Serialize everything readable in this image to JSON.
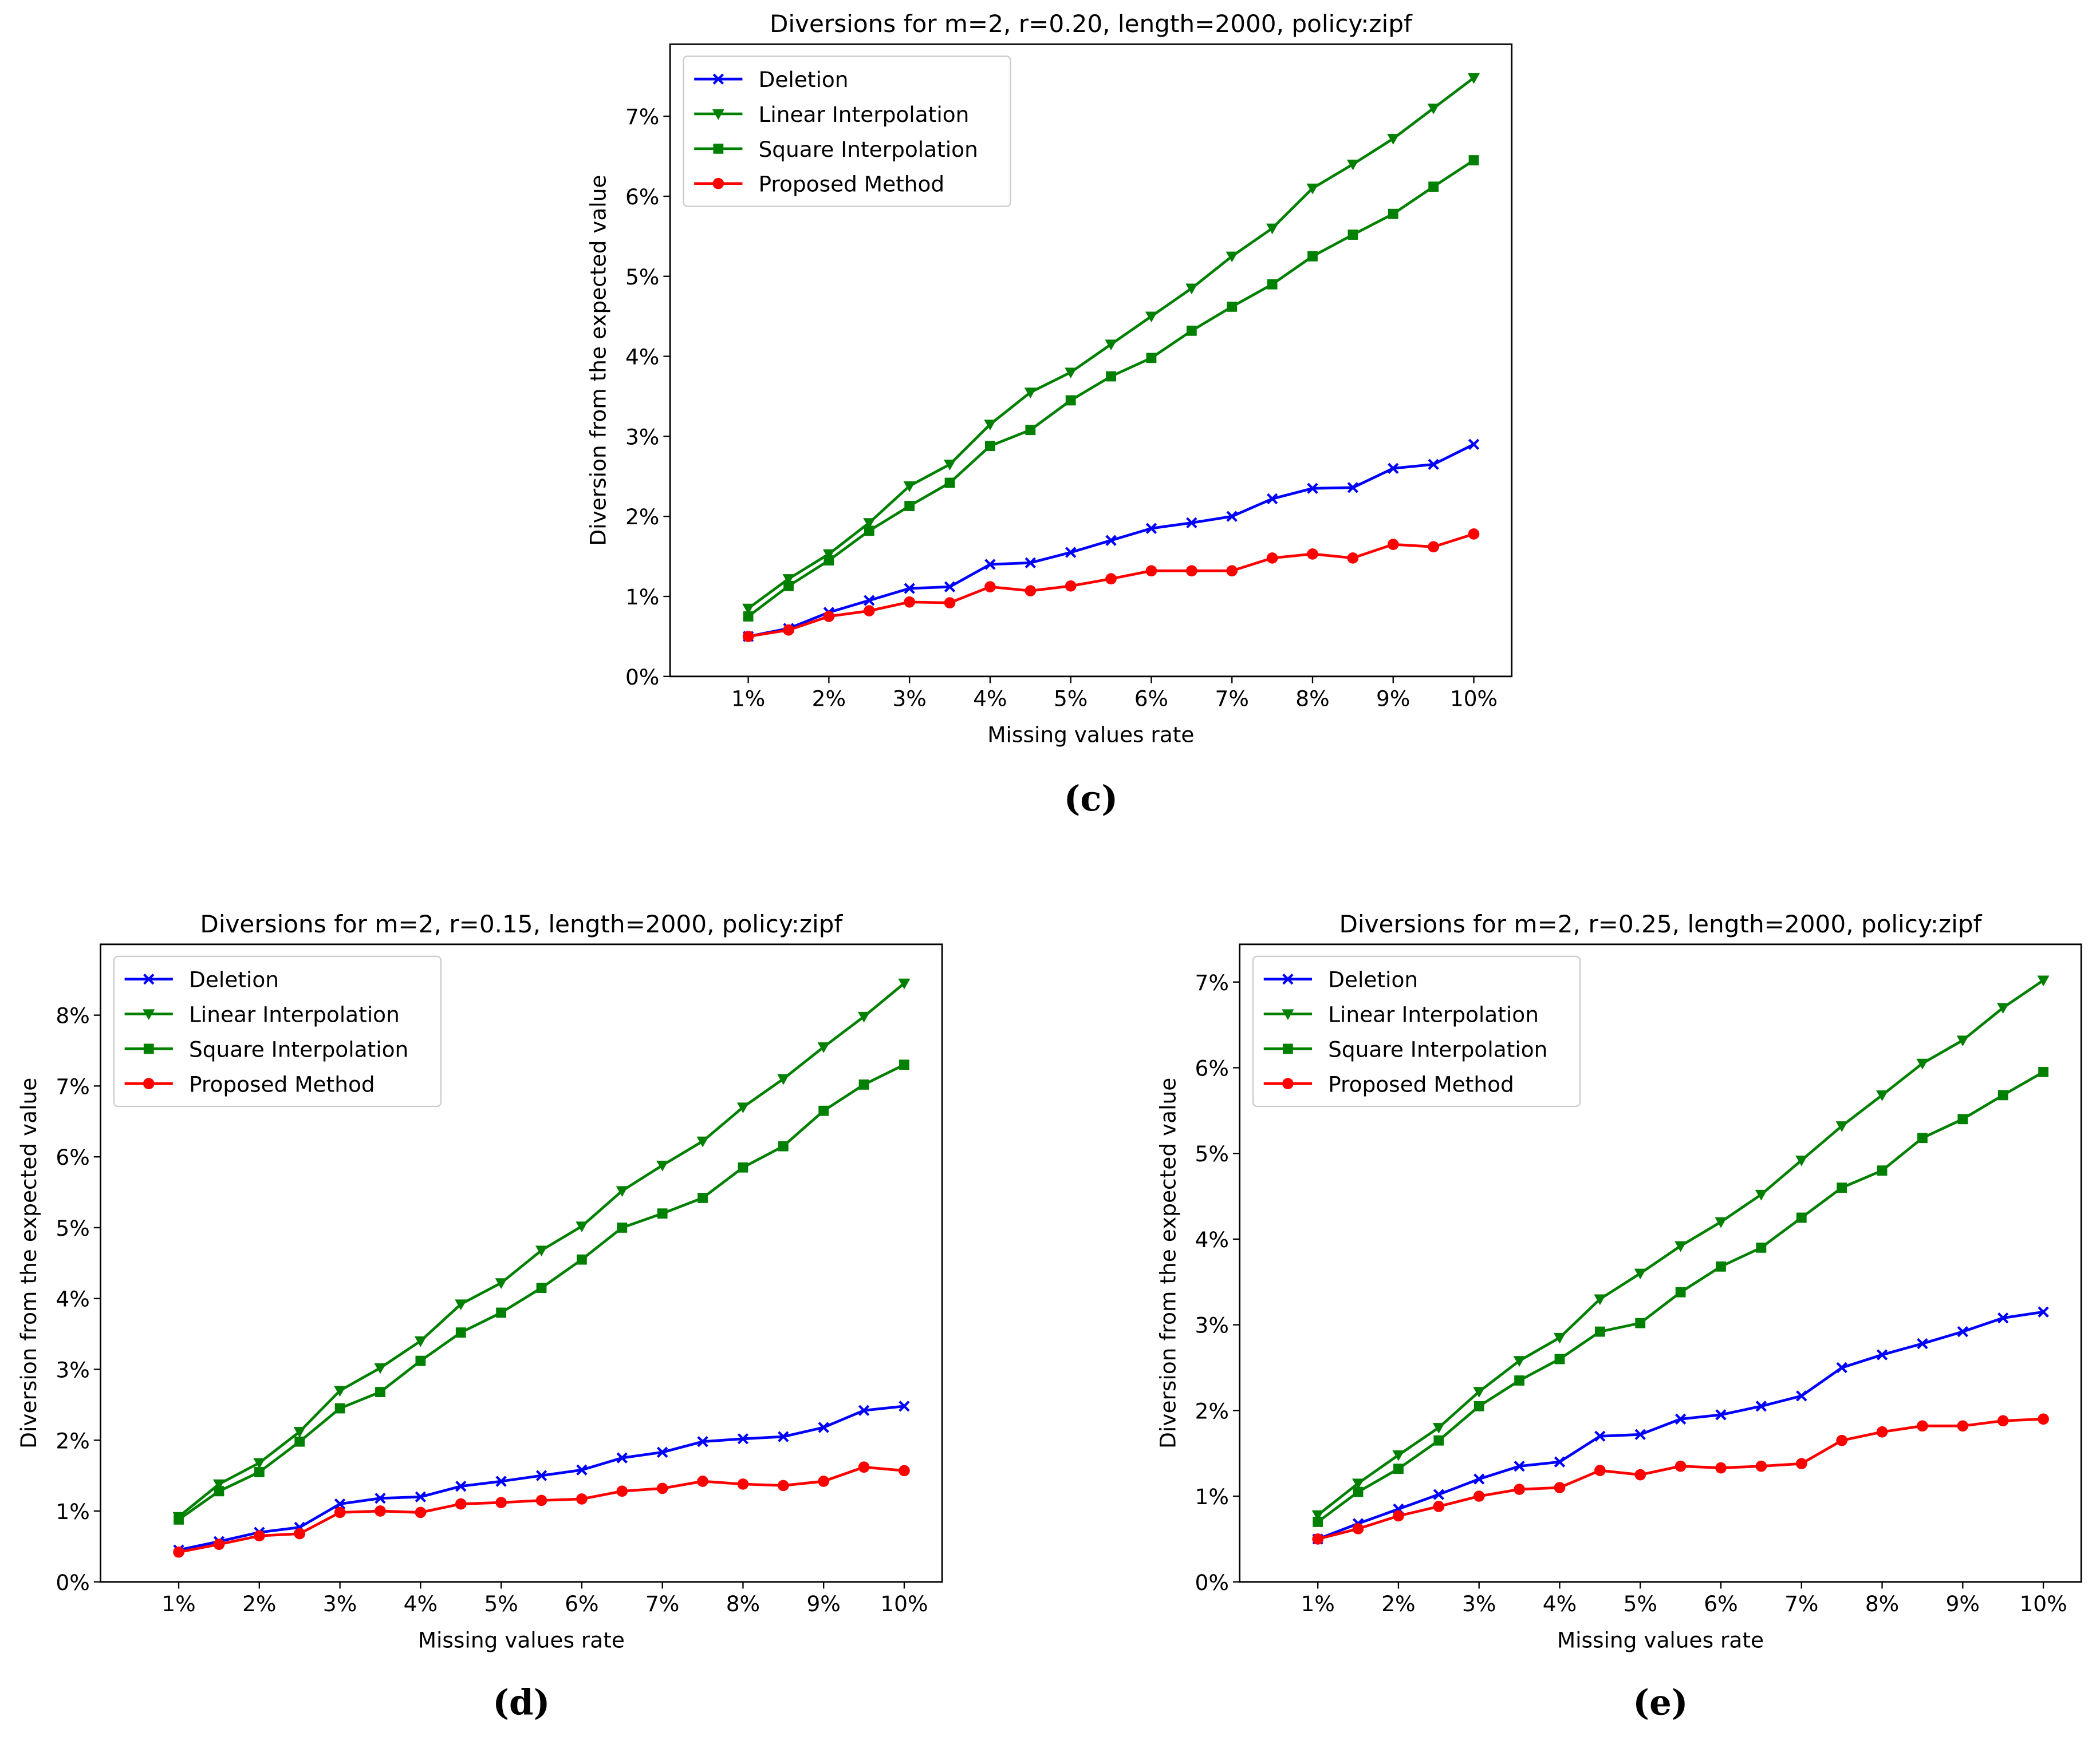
{
  "chart_data": [
    {
      "type": "line",
      "title": "Diversions for m=2, r=0.20, length=2000, policy:zipf",
      "x_label": "Missing values rate",
      "y_label": "Diversion from the expected value",
      "caption": "(c)",
      "x": [
        1,
        1.5,
        2,
        2.5,
        3,
        3.5,
        4,
        4.5,
        5,
        5.5,
        6,
        6.5,
        7,
        7.5,
        8,
        8.5,
        9,
        9.5,
        10
      ],
      "xlim": [
        0.03,
        10.47
      ],
      "ylim": [
        0,
        7.9
      ],
      "xticks": [
        {
          "value": 1,
          "label": "1%"
        },
        {
          "value": 2,
          "label": "2%"
        },
        {
          "value": 3,
          "label": "3%"
        },
        {
          "value": 4,
          "label": "4%"
        },
        {
          "value": 5,
          "label": "5%"
        },
        {
          "value": 6,
          "label": "6%"
        },
        {
          "value": 7,
          "label": "7%"
        },
        {
          "value": 8,
          "label": "8%"
        },
        {
          "value": 9,
          "label": "9%"
        },
        {
          "value": 10,
          "label": "10%"
        }
      ],
      "yticks": [
        {
          "value": 0,
          "label": "0%"
        },
        {
          "value": 1,
          "label": "1%"
        },
        {
          "value": 2,
          "label": "2%"
        },
        {
          "value": 3,
          "label": "3%"
        },
        {
          "value": 4,
          "label": "4%"
        },
        {
          "value": 5,
          "label": "5%"
        },
        {
          "value": 6,
          "label": "6%"
        },
        {
          "value": 7,
          "label": "7%"
        }
      ],
      "legend": "upper left",
      "series": [
        {
          "name": "Deletion",
          "color": "#0000ff",
          "marker": "x",
          "values": [
            0.5,
            0.6,
            0.8,
            0.95,
            1.1,
            1.12,
            1.4,
            1.42,
            1.55,
            1.7,
            1.85,
            1.92,
            2.0,
            2.22,
            2.35,
            2.36,
            2.6,
            2.65,
            2.9
          ]
        },
        {
          "name": "Linear Interpolation",
          "color": "#008000",
          "marker": "v",
          "values": [
            0.85,
            1.22,
            1.53,
            1.92,
            2.38,
            2.65,
            3.15,
            3.55,
            3.8,
            4.15,
            4.5,
            4.85,
            5.25,
            5.6,
            6.1,
            6.4,
            6.72,
            7.1,
            7.48
          ]
        },
        {
          "name": "Square Interpolation",
          "color": "#008000",
          "marker": "s",
          "values": [
            0.75,
            1.13,
            1.45,
            1.82,
            2.13,
            2.42,
            2.88,
            3.08,
            3.45,
            3.75,
            3.98,
            4.32,
            4.62,
            4.9,
            5.25,
            5.52,
            5.78,
            6.12,
            6.45
          ]
        },
        {
          "name": "Proposed Method",
          "color": "#ff0000",
          "marker": "o",
          "values": [
            0.5,
            0.58,
            0.75,
            0.82,
            0.93,
            0.92,
            1.12,
            1.07,
            1.13,
            1.22,
            1.32,
            1.32,
            1.32,
            1.48,
            1.53,
            1.48,
            1.65,
            1.62,
            1.78
          ]
        }
      ]
    },
    {
      "type": "line",
      "title": "Diversions for m=2, r=0.15, length=2000, policy:zipf",
      "x_label": "Missing values rate",
      "y_label": "Diversion from the expected value",
      "caption": "(d)",
      "x": [
        1,
        1.5,
        2,
        2.5,
        3,
        3.5,
        4,
        4.5,
        5,
        5.5,
        6,
        6.5,
        7,
        7.5,
        8,
        8.5,
        9,
        9.5,
        10
      ],
      "xlim": [
        0.03,
        10.47
      ],
      "ylim": [
        0,
        9
      ],
      "xticks": [
        {
          "value": 1,
          "label": "1%"
        },
        {
          "value": 2,
          "label": "2%"
        },
        {
          "value": 3,
          "label": "3%"
        },
        {
          "value": 4,
          "label": "4%"
        },
        {
          "value": 5,
          "label": "5%"
        },
        {
          "value": 6,
          "label": "6%"
        },
        {
          "value": 7,
          "label": "7%"
        },
        {
          "value": 8,
          "label": "8%"
        },
        {
          "value": 9,
          "label": "9%"
        },
        {
          "value": 10,
          "label": "10%"
        }
      ],
      "yticks": [
        {
          "value": 0,
          "label": "0%"
        },
        {
          "value": 1,
          "label": "1%"
        },
        {
          "value": 2,
          "label": "2%"
        },
        {
          "value": 3,
          "label": "3%"
        },
        {
          "value": 4,
          "label": "4%"
        },
        {
          "value": 5,
          "label": "5%"
        },
        {
          "value": 6,
          "label": "6%"
        },
        {
          "value": 7,
          "label": "7%"
        },
        {
          "value": 8,
          "label": "8%"
        }
      ],
      "legend": "upper left",
      "series": [
        {
          "name": "Deletion",
          "color": "#0000ff",
          "marker": "x",
          "values": [
            0.45,
            0.57,
            0.7,
            0.77,
            1.1,
            1.18,
            1.2,
            1.35,
            1.42,
            1.5,
            1.58,
            1.75,
            1.83,
            1.98,
            2.02,
            2.05,
            2.18,
            2.42,
            2.48
          ]
        },
        {
          "name": "Linear Interpolation",
          "color": "#008000",
          "marker": "v",
          "values": [
            0.92,
            1.38,
            1.68,
            2.12,
            2.7,
            3.02,
            3.4,
            3.92,
            4.22,
            4.68,
            5.02,
            5.52,
            5.88,
            6.22,
            6.7,
            7.1,
            7.55,
            7.98,
            8.45
          ]
        },
        {
          "name": "Square Interpolation",
          "color": "#008000",
          "marker": "s",
          "values": [
            0.88,
            1.28,
            1.55,
            1.98,
            2.45,
            2.68,
            3.12,
            3.52,
            3.8,
            4.15,
            4.55,
            5.0,
            5.2,
            5.42,
            5.85,
            6.15,
            6.65,
            7.02,
            7.3
          ]
        },
        {
          "name": "Proposed Method",
          "color": "#ff0000",
          "marker": "o",
          "values": [
            0.42,
            0.53,
            0.65,
            0.68,
            0.98,
            1.0,
            0.98,
            1.1,
            1.12,
            1.15,
            1.17,
            1.28,
            1.32,
            1.42,
            1.38,
            1.36,
            1.42,
            1.62,
            1.57
          ]
        }
      ]
    },
    {
      "type": "line",
      "title": "Diversions for m=2, r=0.25, length=2000, policy:zipf",
      "x_label": "Missing values rate",
      "y_label": "Diversion from the expected value",
      "caption": "(e)",
      "x": [
        1,
        1.5,
        2,
        2.5,
        3,
        3.5,
        4,
        4.5,
        5,
        5.5,
        6,
        6.5,
        7,
        7.5,
        8,
        8.5,
        9,
        9.5,
        10
      ],
      "xlim": [
        0.03,
        10.47
      ],
      "ylim": [
        0,
        7.44
      ],
      "xticks": [
        {
          "value": 1,
          "label": "1%"
        },
        {
          "value": 2,
          "label": "2%"
        },
        {
          "value": 3,
          "label": "3%"
        },
        {
          "value": 4,
          "label": "4%"
        },
        {
          "value": 5,
          "label": "5%"
        },
        {
          "value": 6,
          "label": "6%"
        },
        {
          "value": 7,
          "label": "7%"
        },
        {
          "value": 8,
          "label": "8%"
        },
        {
          "value": 9,
          "label": "9%"
        },
        {
          "value": 10,
          "label": "10%"
        }
      ],
      "yticks": [
        {
          "value": 0,
          "label": "0%"
        },
        {
          "value": 1,
          "label": "1%"
        },
        {
          "value": 2,
          "label": "2%"
        },
        {
          "value": 3,
          "label": "3%"
        },
        {
          "value": 4,
          "label": "4%"
        },
        {
          "value": 5,
          "label": "5%"
        },
        {
          "value": 6,
          "label": "6%"
        },
        {
          "value": 7,
          "label": "7%"
        }
      ],
      "legend": "upper left",
      "series": [
        {
          "name": "Deletion",
          "color": "#0000ff",
          "marker": "x",
          "values": [
            0.5,
            0.68,
            0.85,
            1.02,
            1.2,
            1.35,
            1.4,
            1.7,
            1.72,
            1.9,
            1.95,
            2.05,
            2.17,
            2.5,
            2.65,
            2.78,
            2.92,
            3.08,
            3.15
          ]
        },
        {
          "name": "Linear Interpolation",
          "color": "#008000",
          "marker": "v",
          "values": [
            0.78,
            1.15,
            1.48,
            1.8,
            2.22,
            2.58,
            2.85,
            3.3,
            3.6,
            3.92,
            4.2,
            4.52,
            4.92,
            5.32,
            5.68,
            6.05,
            6.32,
            6.7,
            7.02
          ]
        },
        {
          "name": "Square Interpolation",
          "color": "#008000",
          "marker": "s",
          "values": [
            0.7,
            1.05,
            1.32,
            1.65,
            2.05,
            2.35,
            2.6,
            2.92,
            3.02,
            3.38,
            3.68,
            3.9,
            4.25,
            4.6,
            4.8,
            5.18,
            5.4,
            5.68,
            5.95
          ]
        },
        {
          "name": "Proposed Method",
          "color": "#ff0000",
          "marker": "o",
          "values": [
            0.5,
            0.62,
            0.77,
            0.88,
            1.0,
            1.08,
            1.1,
            1.3,
            1.25,
            1.35,
            1.33,
            1.35,
            1.38,
            1.65,
            1.75,
            1.82,
            1.82,
            1.88,
            1.9
          ]
        }
      ]
    }
  ]
}
